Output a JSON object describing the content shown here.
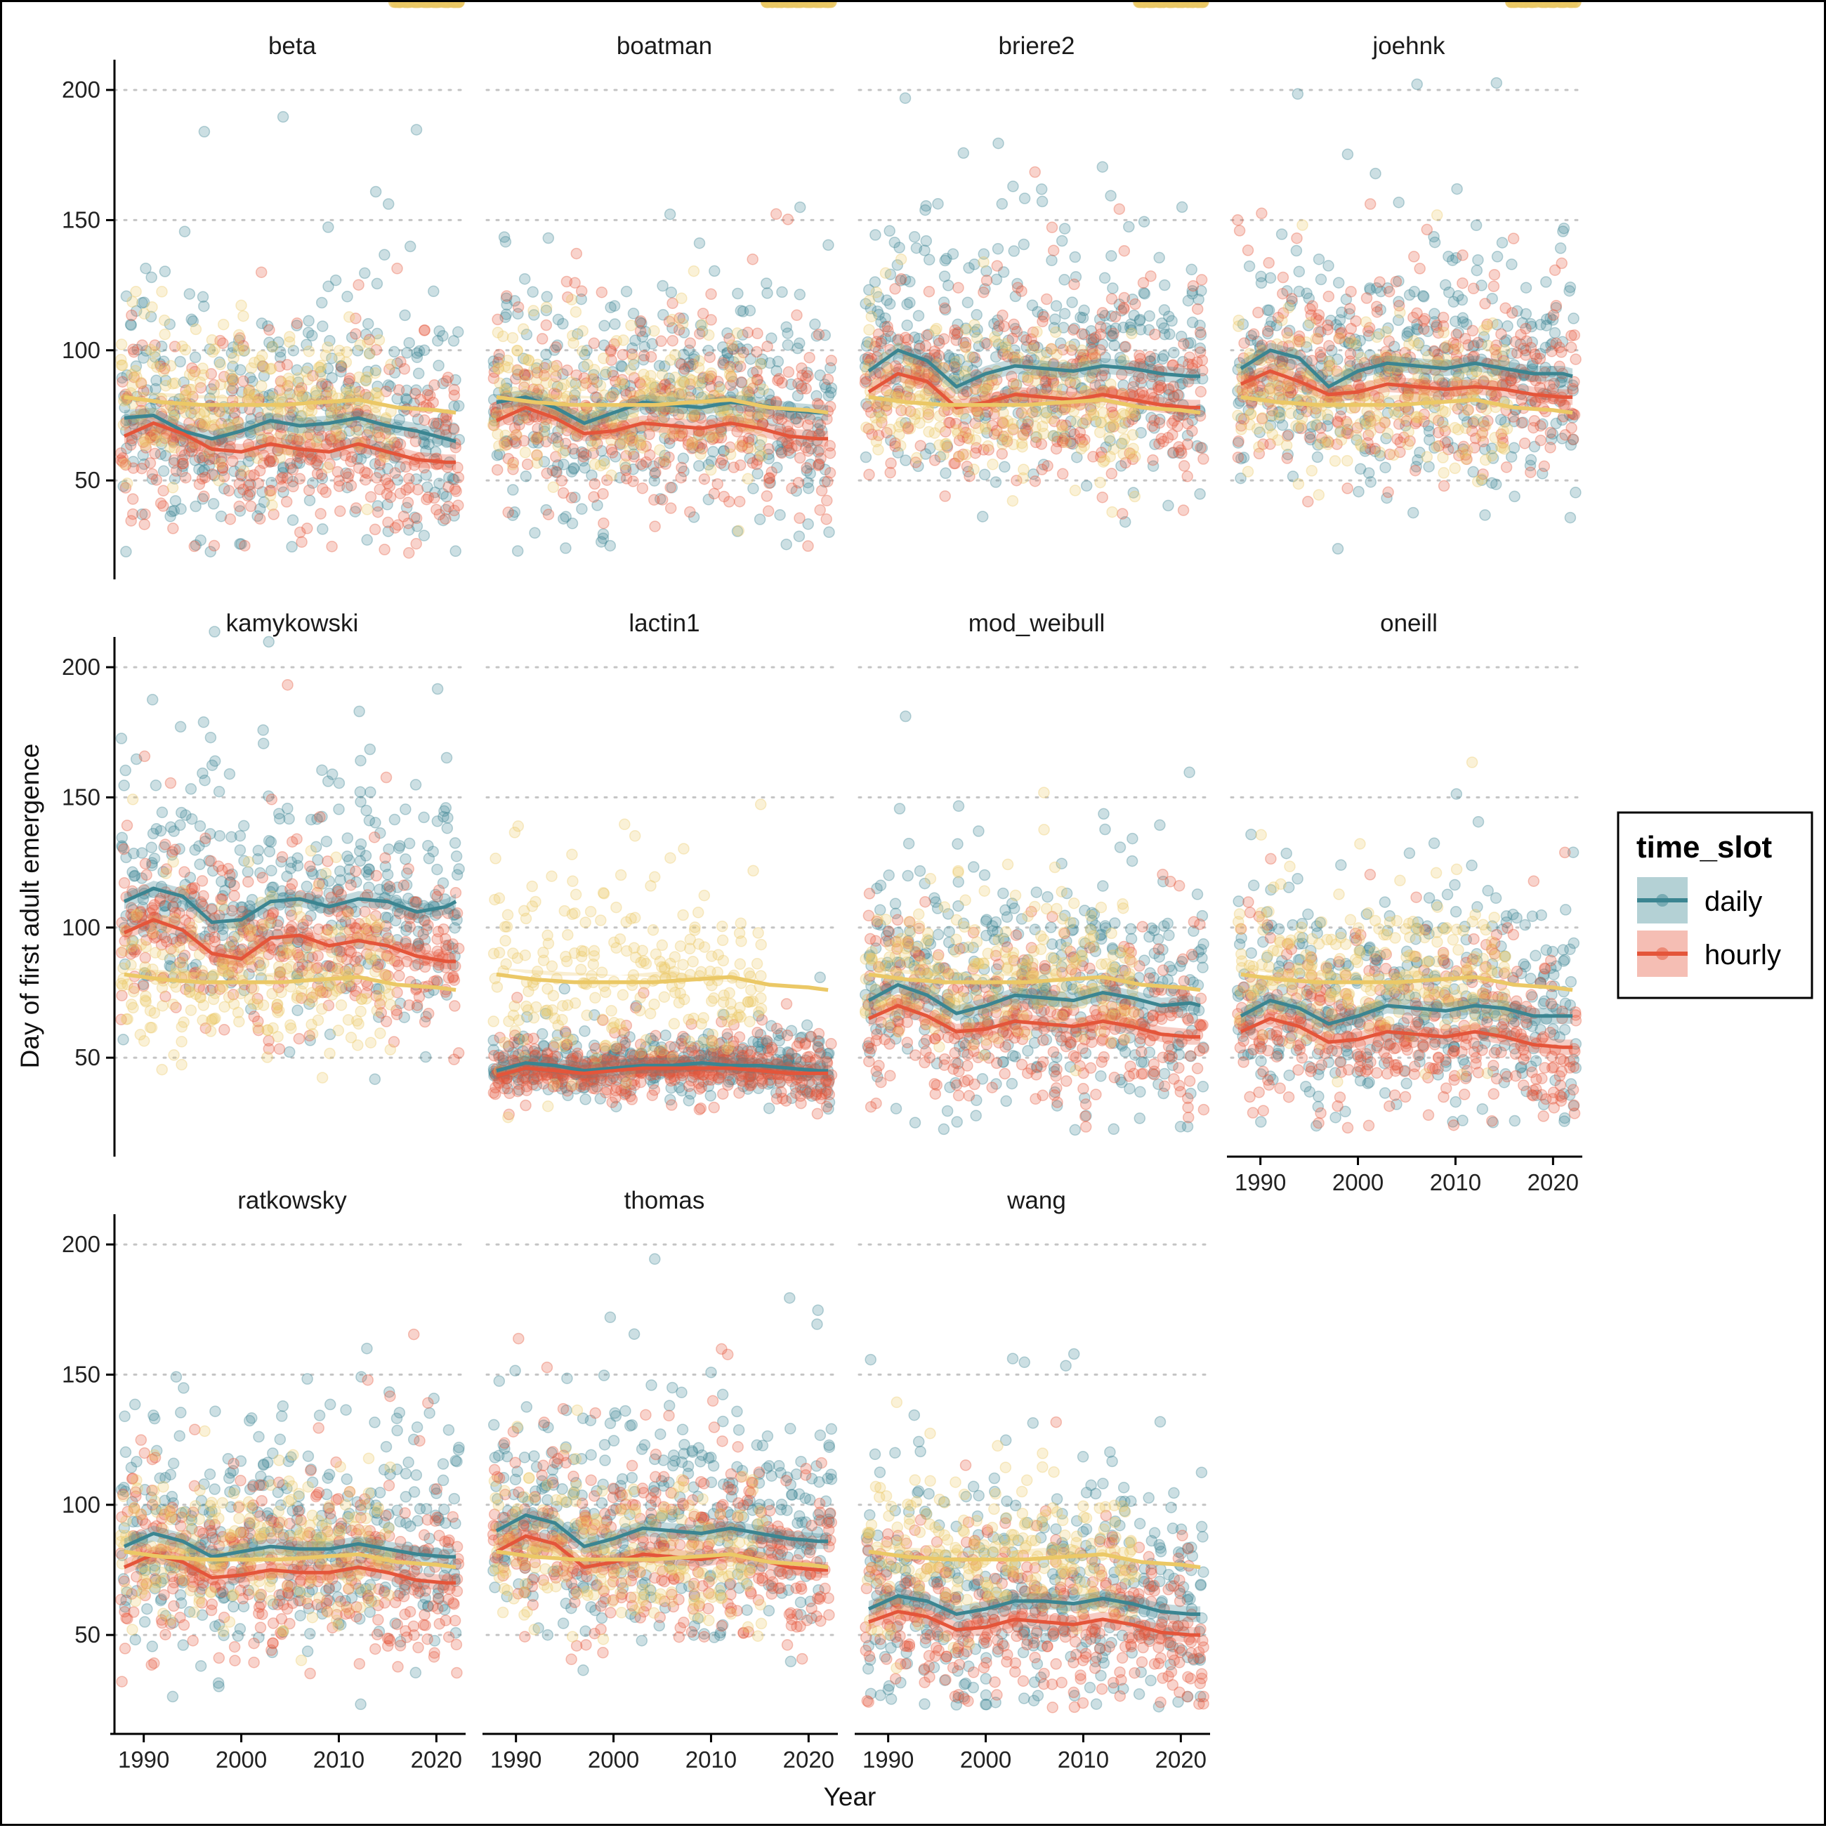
{
  "chart_data": {
    "type": "scatter",
    "facet_by": "model",
    "xlabel": "Year",
    "ylabel": "Day of first adult emergence",
    "xlim": [
      1987,
      2023
    ],
    "ylim": [
      12,
      210
    ],
    "x_ticks": [
      1990,
      2000,
      2010,
      2020
    ],
    "x_tick_labels": [
      "1990",
      "2000",
      "2010",
      "2020"
    ],
    "y_ticks": [
      50,
      100,
      150,
      200
    ],
    "y_tick_labels": [
      "50",
      "100",
      "150",
      "200"
    ],
    "grid": "horizontal dotted",
    "legend": {
      "title": "time_slot",
      "position": "right",
      "entries": [
        {
          "label": "daily",
          "color": "#3b8591"
        },
        {
          "label": "hourly",
          "color": "#e4553a"
        }
      ]
    },
    "reference_color": "#ebc866",
    "reference_line": {
      "x": [
        1988,
        1992,
        1996,
        2000,
        2004,
        2008,
        2012,
        2016,
        2020,
        2022
      ],
      "y": [
        82,
        80,
        79,
        79,
        79,
        80,
        81,
        78,
        77,
        76
      ]
    },
    "facets": [
      {
        "title": "beta",
        "x": [
          1988,
          1991,
          1994,
          1997,
          2000,
          2003,
          2006,
          2009,
          2012,
          2015,
          2018,
          2021,
          2022
        ],
        "daily": [
          74,
          75,
          69,
          66,
          69,
          73,
          71,
          72,
          74,
          71,
          69,
          66,
          65
        ],
        "hourly": [
          67,
          72,
          68,
          62,
          61,
          64,
          62,
          61,
          64,
          61,
          58,
          57,
          57
        ]
      },
      {
        "title": "boatman",
        "x": [
          1988,
          1991,
          1994,
          1997,
          2000,
          2003,
          2006,
          2009,
          2012,
          2015,
          2018,
          2021,
          2022
        ],
        "daily": [
          80,
          82,
          78,
          72,
          76,
          80,
          79,
          78,
          80,
          79,
          77,
          76,
          76
        ],
        "hourly": [
          73,
          78,
          74,
          68,
          69,
          72,
          71,
          70,
          72,
          70,
          67,
          66,
          66
        ]
      },
      {
        "title": "briere2",
        "x": [
          1988,
          1991,
          1994,
          1997,
          2000,
          2003,
          2006,
          2009,
          2012,
          2015,
          2018,
          2021,
          2022
        ],
        "daily": [
          92,
          100,
          96,
          86,
          91,
          94,
          93,
          92,
          94,
          93,
          91,
          90,
          90
        ],
        "hourly": [
          84,
          91,
          88,
          78,
          80,
          83,
          82,
          81,
          83,
          81,
          79,
          78,
          78
        ]
      },
      {
        "title": "joehnk",
        "x": [
          1988,
          1991,
          1994,
          1997,
          2000,
          2003,
          2006,
          2009,
          2012,
          2015,
          2018,
          2021,
          2022
        ],
        "daily": [
          93,
          100,
          97,
          86,
          92,
          95,
          94,
          93,
          95,
          93,
          91,
          91,
          90
        ],
        "hourly": [
          87,
          92,
          88,
          83,
          84,
          87,
          86,
          85,
          86,
          85,
          83,
          82,
          82
        ]
      },
      {
        "title": "kamykowski",
        "x": [
          1988,
          1991,
          1994,
          1997,
          2000,
          2003,
          2006,
          2009,
          2012,
          2015,
          2018,
          2021,
          2022
        ],
        "daily": [
          110,
          115,
          112,
          102,
          103,
          110,
          111,
          108,
          111,
          110,
          106,
          108,
          110
        ],
        "hourly": [
          98,
          103,
          99,
          90,
          88,
          96,
          97,
          93,
          95,
          93,
          89,
          87,
          87
        ]
      },
      {
        "title": "lactin1",
        "x": [
          1988,
          1991,
          1994,
          1997,
          2000,
          2003,
          2006,
          2009,
          2012,
          2015,
          2018,
          2021,
          2022
        ],
        "daily": [
          45,
          48,
          47,
          45,
          46,
          47,
          47,
          48,
          47,
          47,
          46,
          45,
          45
        ],
        "hourly": [
          43,
          46,
          45,
          44,
          45,
          46,
          46,
          46,
          46,
          45,
          44,
          44,
          44
        ]
      },
      {
        "title": "mod_weibull",
        "x": [
          1988,
          1991,
          1994,
          1997,
          2000,
          2003,
          2006,
          2009,
          2012,
          2015,
          2018,
          2021,
          2022
        ],
        "daily": [
          72,
          78,
          74,
          67,
          70,
          74,
          73,
          72,
          75,
          73,
          70,
          71,
          70
        ],
        "hourly": [
          65,
          70,
          66,
          60,
          61,
          64,
          63,
          62,
          64,
          62,
          59,
          58,
          58
        ]
      },
      {
        "title": "oneill",
        "x": [
          1988,
          1991,
          1994,
          1997,
          2000,
          2003,
          2006,
          2009,
          2012,
          2015,
          2018,
          2021,
          2022
        ],
        "daily": [
          66,
          72,
          69,
          63,
          66,
          70,
          69,
          68,
          70,
          69,
          66,
          66,
          66
        ],
        "hourly": [
          60,
          65,
          62,
          56,
          57,
          60,
          59,
          58,
          60,
          58,
          55,
          54,
          54
        ]
      },
      {
        "title": "ratkowsky",
        "x": [
          1988,
          1991,
          1994,
          1997,
          2000,
          2003,
          2006,
          2009,
          2012,
          2015,
          2018,
          2021,
          2022
        ],
        "daily": [
          84,
          89,
          86,
          80,
          82,
          84,
          83,
          83,
          85,
          83,
          81,
          80,
          80
        ],
        "hourly": [
          76,
          81,
          78,
          72,
          73,
          75,
          74,
          74,
          76,
          74,
          71,
          70,
          70
        ]
      },
      {
        "title": "thomas",
        "x": [
          1988,
          1991,
          1994,
          1997,
          2000,
          2003,
          2006,
          2009,
          2012,
          2015,
          2018,
          2021,
          2022
        ],
        "daily": [
          90,
          96,
          93,
          84,
          87,
          91,
          90,
          89,
          91,
          89,
          87,
          86,
          86
        ],
        "hourly": [
          82,
          88,
          85,
          76,
          78,
          81,
          80,
          79,
          81,
          79,
          76,
          75,
          75
        ]
      },
      {
        "title": "wang",
        "x": [
          1988,
          1991,
          1994,
          1997,
          2000,
          2003,
          2006,
          2009,
          2012,
          2015,
          2018,
          2021,
          2022
        ],
        "daily": [
          60,
          65,
          63,
          58,
          60,
          63,
          63,
          62,
          64,
          62,
          59,
          58,
          58
        ],
        "hourly": [
          55,
          59,
          57,
          52,
          53,
          56,
          55,
          54,
          56,
          54,
          51,
          50,
          50
        ]
      }
    ]
  }
}
